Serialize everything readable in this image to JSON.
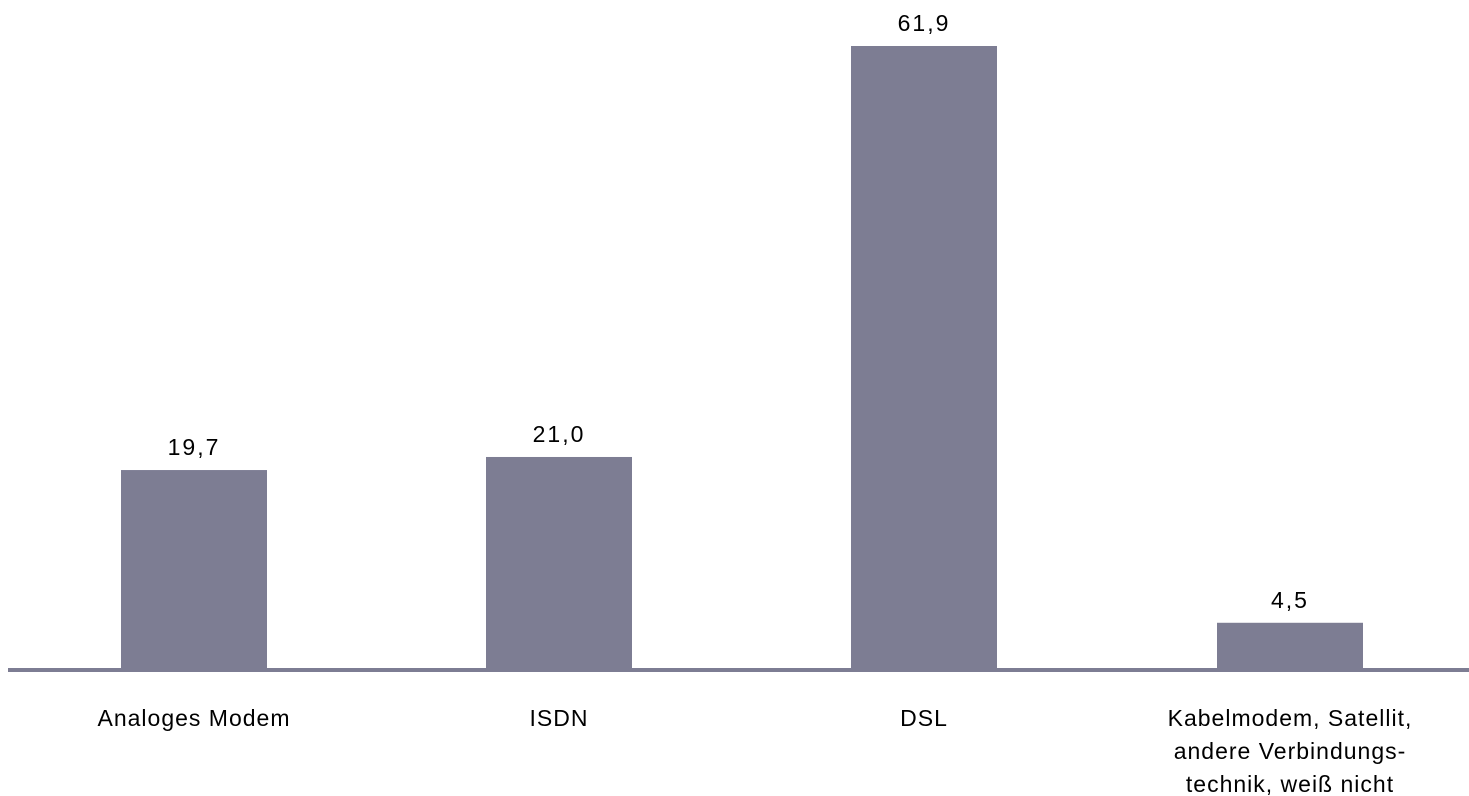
{
  "chart_data": {
    "type": "bar",
    "title": "",
    "xlabel": "",
    "ylabel": "",
    "categories": [
      "Analoges Modem",
      "ISDN",
      "DSL",
      "Kabelmodem, Satellit, andere Verbindungs- technik, weiß nicht"
    ],
    "category_label_lines": [
      [
        "Analoges Modem"
      ],
      [
        "ISDN"
      ],
      [
        "DSL"
      ],
      [
        "Kabelmodem, Satellit,",
        "andere Verbindungs-",
        "technik, weiß nicht"
      ]
    ],
    "values": [
      19.7,
      21.0,
      61.9,
      4.5
    ],
    "value_labels": [
      "19,7",
      "21,0",
      "61,9",
      "4,5"
    ],
    "ylim": [
      0,
      61.9
    ],
    "grid": false,
    "legend": "none",
    "colors": {
      "bar": "#7d7d93",
      "axis": "#7d7d93",
      "text": "#000000"
    }
  }
}
